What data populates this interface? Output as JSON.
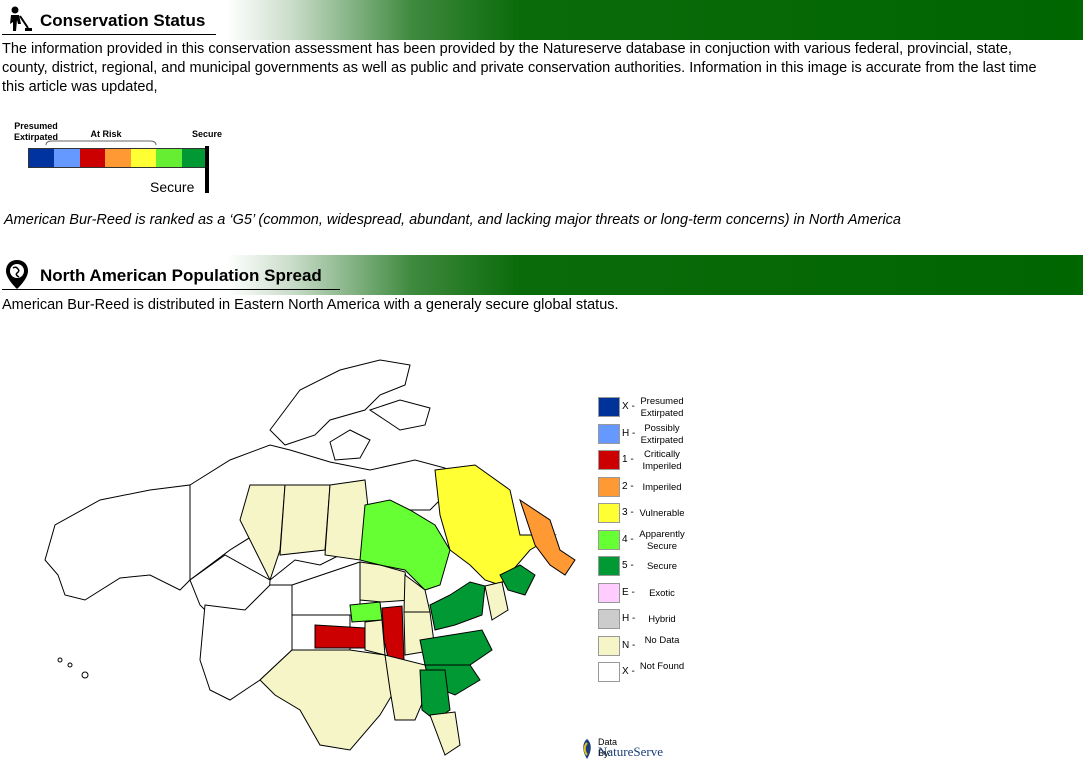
{
  "section1": {
    "title": "Conservation Status",
    "icon": "park-worker-icon",
    "paragraph": "The information provided in this conservation assessment has been provided by the Natureserve database in conjuction with various federal, provincial, state, county, district, regional, and municipal governments as well as public and private conservation authorities. Information in this image is accurate from the last time this article was updated,"
  },
  "scale": {
    "label_left": "Presumed Extirpated",
    "label_mid": "At Risk",
    "label_right": "Secure",
    "colors": [
      "#0033a0",
      "#6699ff",
      "#cc0000",
      "#ff9933",
      "#ffff33",
      "#66ee33",
      "#009933"
    ],
    "status_label": "Secure",
    "status_fraction": 1.0
  },
  "rank_sentence": "American Bur-Reed is ranked as a ‘G5’ (common, widespread, abundant, and lacking major threats or long-term concerns) in North America",
  "section2": {
    "title": "North American Population Spread",
    "icon": "globe-pin-icon",
    "paragraph": "American Bur-Reed is distributed in Eastern North America with a generaly secure global status."
  },
  "legend": [
    {
      "code": "X -",
      "name": "Presumed Extirpated",
      "color": "#003399"
    },
    {
      "code": "H -",
      "name": "Possibly Extirpated",
      "color": "#6699ff"
    },
    {
      "code": "1 -",
      "name": "Critically Imperiled",
      "color": "#cc0000"
    },
    {
      "code": "2 -",
      "name": "Imperiled",
      "color": "#ff9933"
    },
    {
      "code": "3 -",
      "name": "Vulnerable",
      "color": "#ffff33"
    },
    {
      "code": "4 -",
      "name": "Apparently Secure",
      "color": "#66ff33"
    },
    {
      "code": "5 -",
      "name": "Secure",
      "color": "#009933"
    },
    {
      "code": "E -",
      "name": "Exotic",
      "color": "#ffccff"
    },
    {
      "code": "H -",
      "name": "Hybrid",
      "color": "#cccccc"
    },
    {
      "code": "N -",
      "name": "No Data",
      "color": "#f5f5c8"
    },
    {
      "code": "X -",
      "name": "Not Found",
      "color": "#ffffff"
    }
  ],
  "credit": {
    "line1": "Data By:",
    "line2": "NatureServe"
  }
}
